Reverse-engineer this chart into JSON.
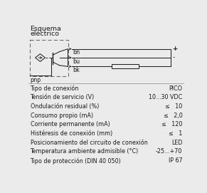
{
  "title_line1": "Esquema",
  "title_line2": "eléctrico",
  "pnp_label": "pnp",
  "specs": [
    [
      "Tipo de conexión",
      "PICO"
    ],
    [
      "Tensión de servicio (V)",
      "10...30 VDC"
    ],
    [
      "Ondulación residual (%)",
      "≤   10"
    ],
    [
      "Consumo propio (mA)",
      "≤   2,0"
    ],
    [
      "Corriente permanente (mA)",
      "≤   120"
    ],
    [
      "Histéresis de conexión (mm)",
      "≤   1"
    ],
    [
      "Posicionamiento del circuito de conexión",
      "LED"
    ],
    [
      "Temperatura ambiente admisible (°C)",
      "-25...+70"
    ],
    [
      "Tipo de protección (DIN 40 050)",
      "IP 67"
    ]
  ],
  "bg_color": "#ebebeb",
  "text_color": "#1a1a1a",
  "font_size": 5.8,
  "title_font_size": 6.8,
  "lw": 0.7
}
